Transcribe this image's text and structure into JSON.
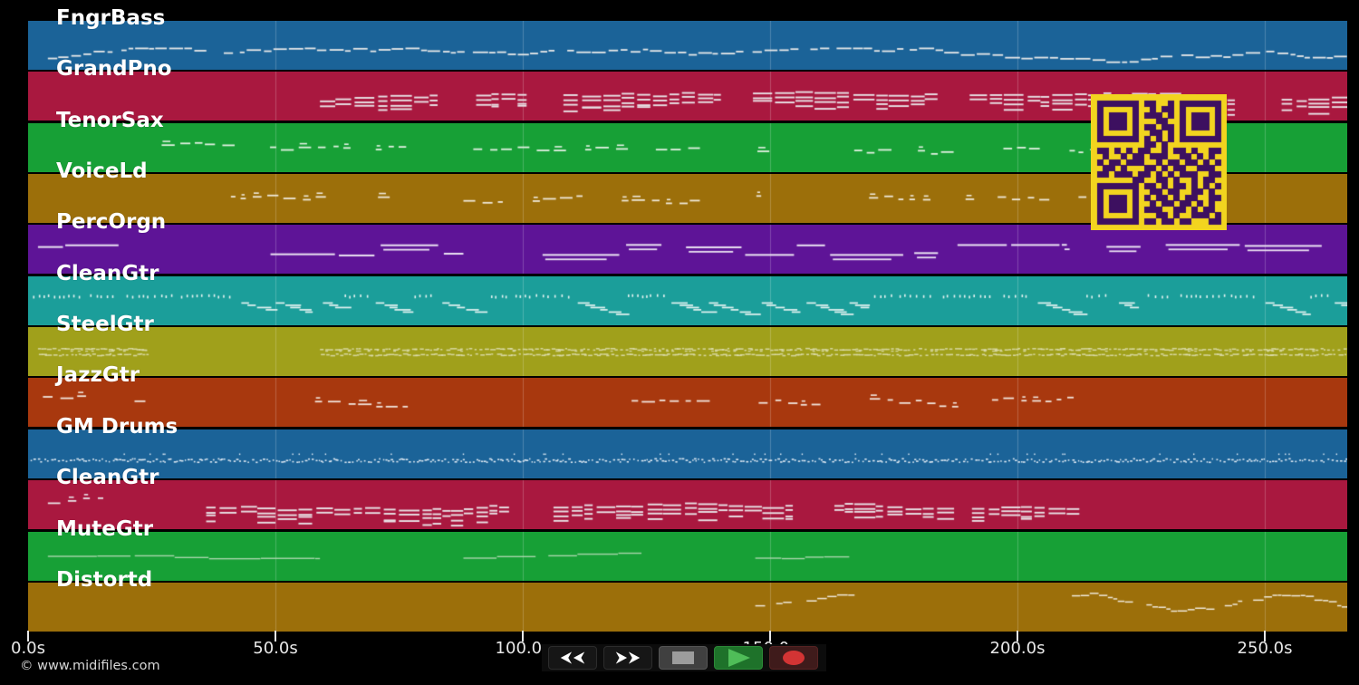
{
  "app": {
    "copyright": "© www.midifiles.com"
  },
  "timeline": {
    "unit": "seconds",
    "duration_s": 267,
    "ticks": [
      {
        "t": 0,
        "label": "0.0s"
      },
      {
        "t": 50,
        "label": "50.0s"
      },
      {
        "t": 100,
        "label": "100.0s"
      },
      {
        "t": 150,
        "label": "150.0s"
      },
      {
        "t": 200,
        "label": "200.0s"
      },
      {
        "t": 250,
        "label": "250.0s"
      }
    ],
    "grid_color": "rgba(255,255,255,0.22)",
    "tick_color": "#e8e8e8"
  },
  "tracks": [
    {
      "name": "FngrBass",
      "color": "#1b6398",
      "note_color": "#e8e8e8",
      "y_center": 0.72,
      "segments": [
        {
          "start": 4,
          "end": 267,
          "style": "melody"
        }
      ]
    },
    {
      "name": "GrandPno",
      "color": "#a9183f",
      "note_color": "#e8e2e6",
      "y_center": 0.55,
      "segments": [
        {
          "start": 59,
          "end": 267,
          "style": "chords"
        }
      ]
    },
    {
      "name": "TenorSax",
      "color": "#17a036",
      "note_color": "#e2f0e2",
      "y_center": 0.5,
      "segments": [
        {
          "start": 27,
          "end": 86,
          "style": "sparse"
        },
        {
          "start": 90,
          "end": 150,
          "style": "sparse"
        },
        {
          "start": 167,
          "end": 222,
          "style": "sparse"
        }
      ]
    },
    {
      "name": "VoiceLd",
      "color": "#9c6f0a",
      "note_color": "#efe8da",
      "y_center": 0.5,
      "segments": [
        {
          "start": 41,
          "end": 71,
          "style": "sparse"
        },
        {
          "start": 88,
          "end": 97,
          "style": "sparse"
        },
        {
          "start": 102,
          "end": 115,
          "style": "sparse"
        },
        {
          "start": 120,
          "end": 148,
          "style": "sparse"
        },
        {
          "start": 170,
          "end": 192,
          "style": "sparse"
        },
        {
          "start": 196,
          "end": 216,
          "style": "sparse"
        }
      ]
    },
    {
      "name": "PercOrgn",
      "color": "#5e1497",
      "note_color": "#eae2f2",
      "y_center": 0.5,
      "segments": [
        {
          "start": 2,
          "end": 19,
          "style": "lines"
        },
        {
          "start": 49,
          "end": 88,
          "style": "lines"
        },
        {
          "start": 104,
          "end": 131,
          "style": "lines"
        },
        {
          "start": 133,
          "end": 210,
          "style": "lines"
        },
        {
          "start": 218,
          "end": 267,
          "style": "lines"
        }
      ]
    },
    {
      "name": "CleanGtr",
      "color": "#1b9e9a",
      "note_color": "#e4f2f0",
      "y_center": 0.52,
      "segments": [
        {
          "start": 1,
          "end": 267,
          "style": "dense"
        }
      ]
    },
    {
      "name": "SteelGtr",
      "color": "#a0a01b",
      "note_color": "#dedeb0",
      "y_center": 0.5,
      "segments": [
        {
          "start": 2,
          "end": 24,
          "style": "strum"
        },
        {
          "start": 59,
          "end": 267,
          "style": "strum"
        }
      ]
    },
    {
      "name": "JazzGtr",
      "color": "#a8380e",
      "note_color": "#f0e4dc",
      "y_center": 0.42,
      "segments": [
        {
          "start": 3,
          "end": 25,
          "style": "sparse"
        },
        {
          "start": 58,
          "end": 80,
          "style": "sparse"
        },
        {
          "start": 122,
          "end": 214,
          "style": "sparse"
        }
      ]
    },
    {
      "name": "GM Drums",
      "color": "#1b6398",
      "note_color": "#dde8f2",
      "y_center": 0.63,
      "segments": [
        {
          "start": 0.5,
          "end": 267,
          "style": "drums"
        }
      ]
    },
    {
      "name": "CleanGtr",
      "color": "#a9183f",
      "note_color": "#e8e2e6",
      "y_center": 0.5,
      "segments": [
        {
          "start": 4,
          "end": 25,
          "style": "sparse"
        },
        {
          "start": 36,
          "end": 154,
          "style": "chords"
        },
        {
          "start": 163,
          "end": 212,
          "style": "chords"
        }
      ]
    },
    {
      "name": "MuteGtr",
      "color": "#17a036",
      "note_color": "#b9dcb9",
      "y_center": 0.53,
      "segments": [
        {
          "start": 4,
          "end": 59,
          "style": "thinline"
        },
        {
          "start": 88,
          "end": 124,
          "style": "thinline"
        },
        {
          "start": 147,
          "end": 166,
          "style": "thinline"
        }
      ]
    },
    {
      "name": "Distortd",
      "color": "#9c6f0a",
      "note_color": "#efe8da",
      "y_center": 0.4,
      "segments": [
        {
          "start": 147,
          "end": 166,
          "style": "wavy"
        },
        {
          "start": 211,
          "end": 267,
          "style": "wavy"
        }
      ]
    }
  ],
  "transport": {
    "buttons": [
      "rewind",
      "fast-forward",
      "stop",
      "play",
      "record"
    ],
    "icon_color": "#ffffff",
    "stop_color": "#9c9c9c",
    "play_color": "#4fbd58",
    "record_color": "#d23434"
  },
  "qr": {
    "light": "#f2d41f",
    "dark": "#3d1060",
    "matrix": [
      "111111101100101111111",
      "100000100101101000001",
      "101110101110101011101",
      "101110100011001011101",
      "101110101101101011101",
      "100000100110101000001",
      "111111101010101111111",
      "000000001101000000000",
      "110101011001011010011",
      "010010110111001101010",
      "101101110010110110101",
      "011010001101011001110",
      "110111011010101110011",
      "000000110011010010110",
      "111111101101011010101",
      "100000100110110011010",
      "101110101011010110011",
      "101110100101101101010",
      "101110101110011010110",
      "100000100011010011101",
      "111111101101101100011"
    ]
  }
}
